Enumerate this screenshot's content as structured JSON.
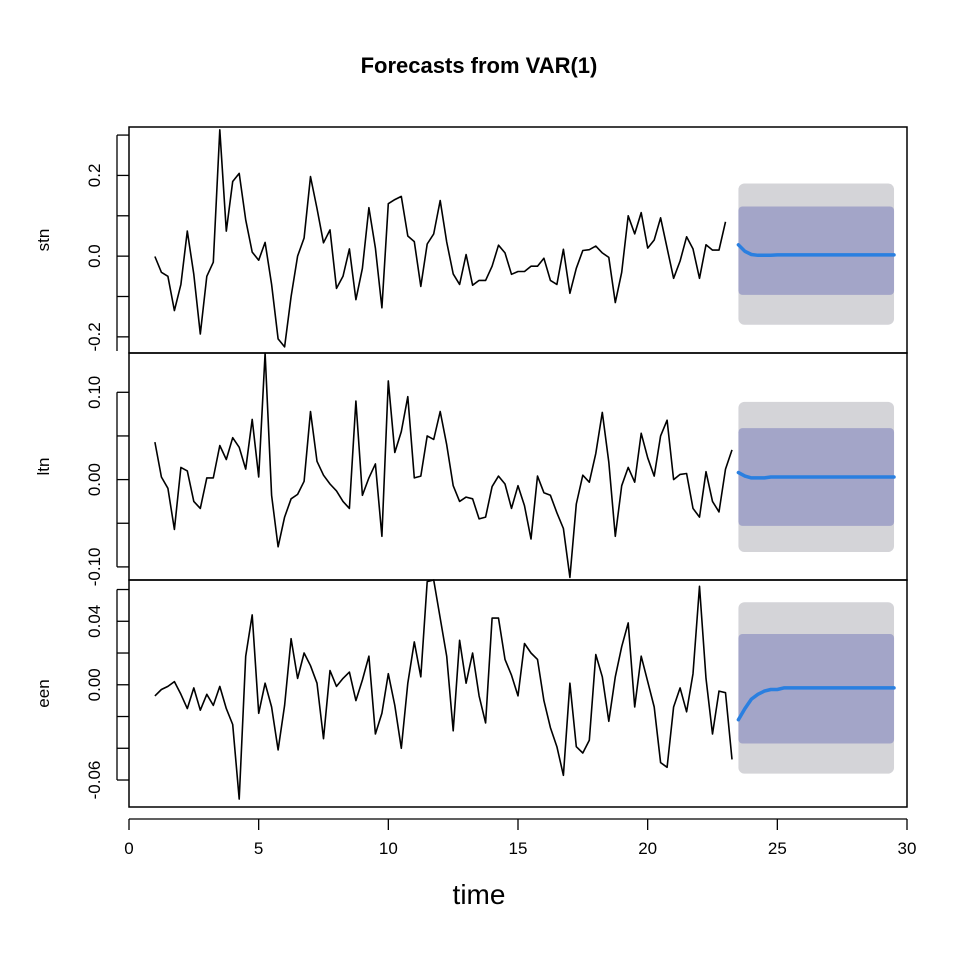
{
  "chart_data": {
    "type": "line",
    "title": "Forecasts from VAR(1)",
    "xlabel": "time",
    "xlim": [
      0,
      30
    ],
    "x_ticks": [
      0,
      5,
      10,
      15,
      20,
      25,
      30
    ],
    "observed_x": {
      "start": 1,
      "step": 0.25
    },
    "forecast_x": {
      "start": 23.5,
      "step": 0.25
    },
    "colors": {
      "observed": "#000000",
      "forecast": "#2a7fe0",
      "band_80": "#a3a5c8",
      "band_95": "#d4d4d8"
    },
    "panels": [
      {
        "name": "stn",
        "ylim": [
          -0.24,
          0.32
        ],
        "y_ticks": [
          -0.2,
          0.0,
          0.2
        ],
        "y_tick_labels": [
          "-0.2",
          "0.0",
          "0.2"
        ],
        "y_minor_ticks": [
          -0.3,
          -0.2,
          -0.1,
          0.0,
          0.1,
          0.2,
          0.3
        ],
        "observed": [
          -0.001,
          -0.04,
          -0.05,
          -0.135,
          -0.07,
          0.062,
          -0.045,
          -0.193,
          -0.05,
          -0.015,
          0.313,
          0.062,
          0.185,
          0.205,
          0.09,
          0.01,
          -0.01,
          0.034,
          -0.07,
          -0.205,
          -0.225,
          -0.1,
          0.0,
          0.045,
          0.197,
          0.118,
          0.033,
          0.065,
          -0.08,
          -0.05,
          0.018,
          -0.108,
          -0.03,
          0.12,
          0.02,
          -0.128,
          0.13,
          0.14,
          0.148,
          0.05,
          0.036,
          -0.075,
          0.03,
          0.055,
          0.138,
          0.035,
          -0.044,
          -0.07,
          0.004,
          -0.072,
          -0.06,
          -0.06,
          -0.025,
          0.027,
          0.008,
          -0.045,
          -0.038,
          -0.038,
          -0.025,
          -0.025,
          -0.005,
          -0.06,
          -0.07,
          0.017,
          -0.092,
          -0.03,
          0.014,
          0.016,
          0.025,
          0.008,
          -0.003,
          -0.115,
          -0.04,
          0.1,
          0.055,
          0.108,
          0.02,
          0.04,
          0.095,
          0.02,
          -0.055,
          -0.012,
          0.048,
          0.018,
          -0.055,
          0.028,
          0.015,
          0.015,
          0.085
        ],
        "forecast": [
          0.028,
          0.012,
          0.004,
          0.002,
          0.002,
          0.002,
          0.003,
          0.003,
          0.003,
          0.003,
          0.003,
          0.003,
          0.003,
          0.003,
          0.003,
          0.003,
          0.003,
          0.003,
          0.003,
          0.003,
          0.003,
          0.003,
          0.003,
          0.003,
          0.003
        ],
        "band_80": [
          -0.096,
          0.123
        ],
        "band_95": [
          -0.17,
          0.18
        ]
      },
      {
        "name": "ltn",
        "ylim": [
          -0.115,
          0.145
        ],
        "y_ticks": [
          -0.1,
          0.0,
          0.1
        ],
        "y_tick_labels": [
          "-0.10",
          "0.00",
          "0.10"
        ],
        "y_minor_ticks": [
          -0.1,
          -0.05,
          0.0,
          0.05,
          0.1
        ],
        "observed": [
          0.043,
          0.003,
          -0.01,
          -0.057,
          0.014,
          0.01,
          -0.025,
          -0.033,
          0.002,
          0.002,
          0.039,
          0.023,
          0.048,
          0.037,
          0.012,
          0.069,
          0.003,
          0.145,
          -0.018,
          -0.077,
          -0.043,
          -0.022,
          -0.017,
          -0.002,
          0.078,
          0.021,
          0.005,
          -0.005,
          -0.013,
          -0.025,
          -0.033,
          0.09,
          -0.018,
          0.002,
          0.018,
          -0.065,
          0.113,
          0.031,
          0.055,
          0.095,
          0.002,
          0.004,
          0.05,
          0.046,
          0.078,
          0.04,
          -0.007,
          -0.025,
          -0.02,
          -0.022,
          -0.045,
          -0.043,
          -0.008,
          0.004,
          -0.005,
          -0.033,
          -0.007,
          -0.03,
          -0.068,
          0.004,
          -0.015,
          -0.018,
          -0.038,
          -0.056,
          -0.112,
          -0.028,
          0.005,
          -0.003,
          0.03,
          0.077,
          0.02,
          -0.065,
          -0.007,
          0.014,
          -0.003,
          0.053,
          0.025,
          0.004,
          0.05,
          0.068,
          0.0,
          0.006,
          0.007,
          -0.033,
          -0.043,
          0.009,
          -0.025,
          -0.037,
          0.012,
          0.034
        ],
        "forecast": [
          0.008,
          0.004,
          0.002,
          0.002,
          0.002,
          0.003,
          0.003,
          0.003,
          0.003,
          0.003,
          0.003,
          0.003,
          0.003,
          0.003,
          0.003,
          0.003,
          0.003,
          0.003,
          0.003,
          0.003,
          0.003,
          0.003,
          0.003,
          0.003,
          0.003
        ],
        "band_80": [
          -0.053,
          0.059
        ],
        "band_95": [
          -0.083,
          0.089
        ]
      },
      {
        "name": "een",
        "ylim": [
          -0.077,
          0.066
        ],
        "y_ticks": [
          -0.06,
          0.0,
          0.04
        ],
        "y_tick_labels": [
          "-0.06",
          "0.00",
          "0.04"
        ],
        "y_minor_ticks": [
          -0.06,
          -0.04,
          -0.02,
          0.0,
          0.02,
          0.04,
          0.06
        ],
        "observed": [
          -0.007,
          -0.003,
          -0.001,
          0.002,
          -0.006,
          -0.015,
          -0.002,
          -0.016,
          -0.006,
          -0.013,
          -0.001,
          -0.015,
          -0.025,
          -0.072,
          0.018,
          0.044,
          -0.018,
          0.001,
          -0.014,
          -0.041,
          -0.013,
          0.029,
          0.004,
          0.02,
          0.012,
          0.001,
          -0.034,
          0.009,
          -0.001,
          0.004,
          0.008,
          -0.01,
          0.003,
          0.018,
          -0.031,
          -0.018,
          0.007,
          -0.013,
          -0.04,
          0.001,
          0.027,
          0.005,
          0.065,
          0.066,
          0.042,
          0.018,
          -0.029,
          0.028,
          0.001,
          0.02,
          -0.007,
          -0.024,
          0.042,
          0.042,
          0.016,
          0.006,
          -0.007,
          0.026,
          0.02,
          0.016,
          -0.01,
          -0.027,
          -0.039,
          -0.057,
          0.001,
          -0.039,
          -0.043,
          -0.035,
          0.019,
          0.005,
          -0.023,
          0.005,
          0.024,
          0.039,
          -0.014,
          0.018,
          0.002,
          -0.014,
          -0.049,
          -0.052,
          -0.014,
          -0.002,
          -0.017,
          0.007,
          0.062,
          0.004,
          -0.031,
          -0.004,
          -0.005,
          -0.047
        ],
        "forecast": [
          -0.022,
          -0.015,
          -0.009,
          -0.006,
          -0.004,
          -0.003,
          -0.003,
          -0.002,
          -0.002,
          -0.002,
          -0.002,
          -0.002,
          -0.002,
          -0.002,
          -0.002,
          -0.002,
          -0.002,
          -0.002,
          -0.002,
          -0.002,
          -0.002,
          -0.002,
          -0.002,
          -0.002,
          -0.002
        ],
        "band_80": [
          -0.037,
          0.032
        ],
        "band_95": [
          -0.056,
          0.052
        ]
      }
    ]
  }
}
